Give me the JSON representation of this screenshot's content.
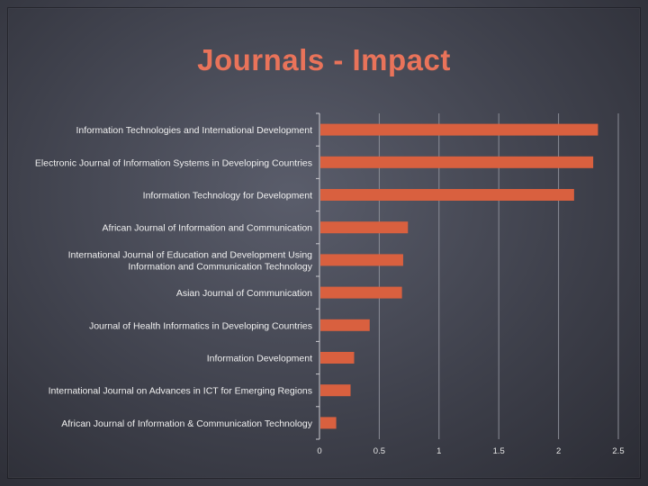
{
  "slide": {
    "title": "Journals - Impact"
  },
  "chart_data": {
    "type": "bar",
    "orientation": "horizontal",
    "title": "",
    "xlabel": "",
    "ylabel": "",
    "categories": [
      [
        "Information Technologies and International Development"
      ],
      [
        "Electronic Journal of Information Systems in Developing Countries"
      ],
      [
        "Information Technology for Development"
      ],
      [
        "African Journal of Information and Communication"
      ],
      [
        "International Journal of Education and Development Using",
        "Information and Communication Technology"
      ],
      [
        "Asian Journal of Communication"
      ],
      [
        "Journal of Health Informatics in Developing Countries"
      ],
      [
        "Information Development"
      ],
      [
        "International Journal on Advances in ICT for Emerging Regions"
      ],
      [
        "African Journal of Information & Communication Technology"
      ]
    ],
    "values": [
      2.33,
      2.29,
      2.13,
      0.74,
      0.7,
      0.69,
      0.42,
      0.29,
      0.26,
      0.14
    ],
    "xlim": [
      0,
      2.5
    ],
    "xticks": [
      "0",
      "0.5",
      "1",
      "1.5",
      "2",
      "2.5"
    ],
    "xtick_values": [
      0,
      0.5,
      1,
      1.5,
      2,
      2.5
    ],
    "grid": true,
    "legend": "none",
    "colors": {
      "bar": "#d9603f",
      "title": "#e9735a",
      "gridline": "#8a8c96",
      "axis": "#c9c9cf"
    }
  }
}
